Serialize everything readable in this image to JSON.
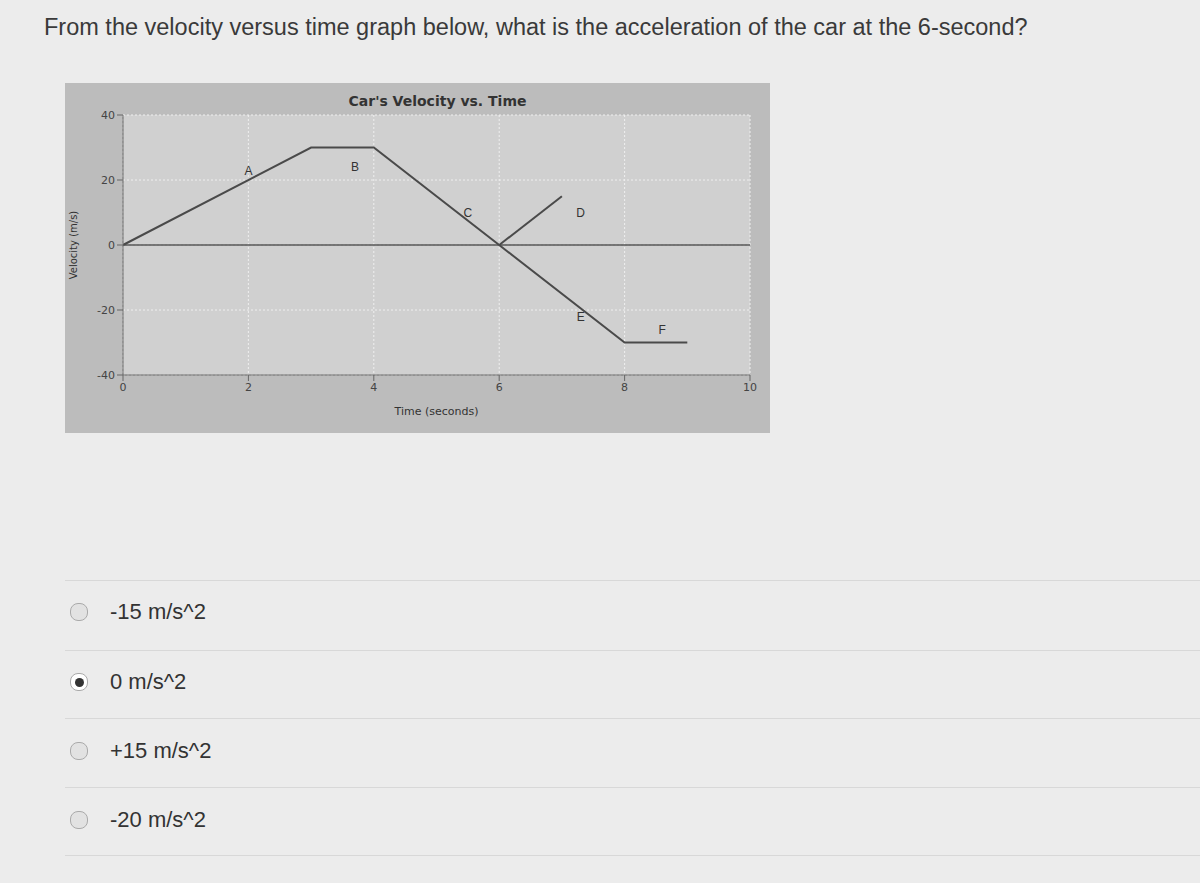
{
  "question": "From the velocity versus time graph below, what is the acceleration of the car at the 6-second?",
  "chart_data": {
    "type": "line",
    "title": "Car's Velocity vs. Time",
    "x_label": "Time (seconds)",
    "y_label": "Velocity (m/s)",
    "series": [
      {
        "x": [
          0,
          3,
          4,
          6,
          8,
          9
        ],
        "values": [
          0,
          30,
          30,
          0,
          -30,
          -30
        ],
        "color": "#4a4a4a"
      },
      {
        "x": [
          6,
          7
        ],
        "values": [
          0,
          15
        ],
        "color": "#4a4a4a"
      }
    ],
    "xlim": [
      0,
      10
    ],
    "xticks": [
      0,
      2,
      4,
      6,
      8,
      10
    ],
    "ylim": [
      -40,
      40
    ],
    "yticks": [
      -40,
      -20,
      0,
      20,
      40
    ],
    "grid": true,
    "reference_lines": [
      {
        "y": 0
      }
    ],
    "annotations": [
      {
        "text": "A",
        "x": 2,
        "y": 23
      },
      {
        "text": "B",
        "x": 3.7,
        "y": 24
      },
      {
        "text": "C",
        "x": 5.5,
        "y": 10
      },
      {
        "text": "D",
        "x": 7.3,
        "y": 10
      },
      {
        "text": "E",
        "x": 7.3,
        "y": -22
      },
      {
        "text": "F",
        "x": 8.6,
        "y": -26
      }
    ]
  },
  "options": [
    {
      "text": "-15 m/s^2",
      "selected": false
    },
    {
      "text": "0 m/s^2",
      "selected": true
    },
    {
      "text": "+15 m/s^2",
      "selected": false
    },
    {
      "text": "-20 m/s^2",
      "selected": false
    }
  ]
}
